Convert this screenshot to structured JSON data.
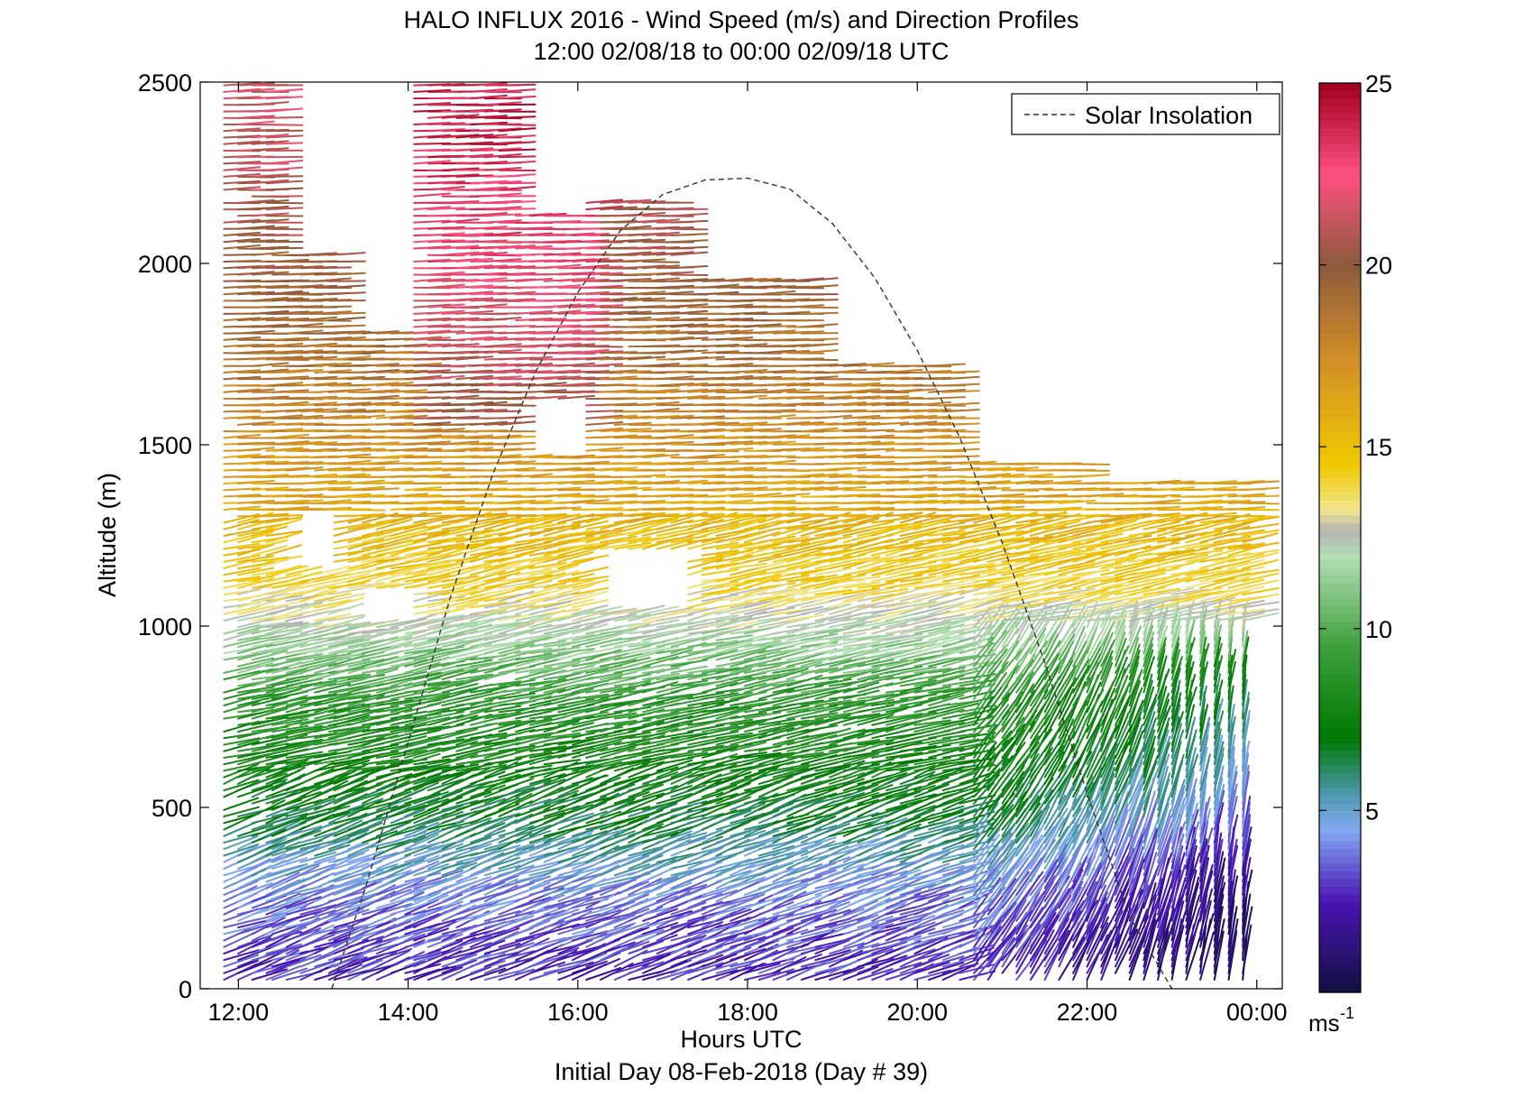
{
  "chart_data": {
    "type": "wind-barb-profile",
    "title": "HALO INFLUX 2016 - Wind Speed (m/s) and Direction Profiles",
    "subtitle": "12:00 02/08/18 to 00:00 02/09/18  UTC",
    "xlabel": "Hours UTC",
    "xlabel2": "Initial Day 08-Feb-2018 (Day # 39)",
    "ylabel": "Altitude (m)",
    "xlim": [
      11.55,
      24.3
    ],
    "ylim": [
      0,
      2500
    ],
    "x_ticks": [
      {
        "value": 12,
        "label": "12:00"
      },
      {
        "value": 14,
        "label": "14:00"
      },
      {
        "value": 16,
        "label": "16:00"
      },
      {
        "value": 18,
        "label": "18:00"
      },
      {
        "value": 20,
        "label": "20:00"
      },
      {
        "value": 22,
        "label": "22:00"
      },
      {
        "value": 24,
        "label": "00:00"
      }
    ],
    "y_ticks": [
      {
        "value": 0,
        "label": "0"
      },
      {
        "value": 500,
        "label": "500"
      },
      {
        "value": 1000,
        "label": "1000"
      },
      {
        "value": 1500,
        "label": "1500"
      },
      {
        "value": 2000,
        "label": "2000"
      },
      {
        "value": 2500,
        "label": "2500"
      }
    ],
    "legend": {
      "entry": "Solar Insolation",
      "position": "top-right",
      "line_style": "dashed"
    },
    "solar_insolation_curve": {
      "x": [
        13.1,
        13.5,
        14.0,
        14.5,
        15.0,
        15.5,
        16.0,
        16.5,
        17.0,
        17.5,
        18.0,
        18.5,
        19.0,
        19.5,
        20.0,
        20.5,
        21.0,
        21.5,
        22.0,
        22.5,
        23.0
      ],
      "y": [
        0,
        280,
        680,
        1080,
        1420,
        1700,
        1920,
        2090,
        2190,
        2230,
        2235,
        2205,
        2110,
        1960,
        1760,
        1520,
        1230,
        900,
        540,
        200,
        0
      ]
    },
    "colorbar": {
      "range": [
        0,
        25
      ],
      "ticks": [
        {
          "value": 5,
          "label": "5"
        },
        {
          "value": 10,
          "label": "10"
        },
        {
          "value": 15,
          "label": "15"
        },
        {
          "value": 20,
          "label": "20"
        },
        {
          "value": 25,
          "label": "25"
        }
      ],
      "unit_label": "ms",
      "unit_exponent": "-1",
      "stops": [
        {
          "value": 0,
          "color": "#101040"
        },
        {
          "value": 2.5,
          "color": "#4a14b4"
        },
        {
          "value": 4.5,
          "color": "#82aaf2"
        },
        {
          "value": 5.5,
          "color": "#4a96a8"
        },
        {
          "value": 7,
          "color": "#007800"
        },
        {
          "value": 9.5,
          "color": "#3ca03c"
        },
        {
          "value": 12,
          "color": "#b4deb4"
        },
        {
          "value": 12.7,
          "color": "#b4b4b4"
        },
        {
          "value": 13.3,
          "color": "#f2e68c"
        },
        {
          "value": 14.5,
          "color": "#f0c800"
        },
        {
          "value": 17.5,
          "color": "#d28c28"
        },
        {
          "value": 20,
          "color": "#8c5a3c"
        },
        {
          "value": 22.5,
          "color": "#ff5082"
        },
        {
          "value": 25,
          "color": "#a0001e"
        }
      ]
    },
    "profiles": {
      "time_step_hours": 0.167,
      "altitude_step_m": 18,
      "columns": [
        {
          "t_start": 11.83,
          "t_end": 12.4,
          "top_m": 2500,
          "gaps": []
        },
        {
          "t_start": 12.4,
          "t_end": 13.13,
          "top_m": 2040,
          "gaps": [
            [
              1150,
              1320
            ]
          ]
        },
        {
          "t_start": 13.13,
          "t_end": 14.07,
          "top_m": 1820,
          "gaps": [
            [
              1000,
              1090
            ]
          ]
        },
        {
          "t_start": 14.07,
          "t_end": 15.27,
          "top_m": 2500,
          "gaps": []
        },
        {
          "t_start": 15.27,
          "t_end": 16.1,
          "top_m": 2140,
          "gaps": [
            [
              1480,
              1620
            ]
          ]
        },
        {
          "t_start": 16.1,
          "t_end": 17.3,
          "top_m": 2170,
          "gaps": [
            [
              1050,
              1200
            ]
          ]
        },
        {
          "t_start": 17.3,
          "t_end": 18.8,
          "top_m": 1960,
          "gaps": []
        },
        {
          "t_start": 18.8,
          "t_end": 20.5,
          "top_m": 1720,
          "gaps": []
        },
        {
          "t_start": 20.5,
          "t_end": 22.0,
          "top_m": 1460,
          "gaps": []
        },
        {
          "t_start": 22.0,
          "t_end": 23.0,
          "top_m": 1410,
          "gaps": []
        },
        {
          "t_start": 23.0,
          "t_end": 23.9,
          "top_m": 1410,
          "gaps": []
        }
      ],
      "speed_profile_vs_altitude": [
        {
          "alt": 0,
          "speed": 2.5
        },
        {
          "alt": 250,
          "speed": 4.0
        },
        {
          "alt": 500,
          "speed": 7.0
        },
        {
          "alt": 800,
          "speed": 9.0
        },
        {
          "alt": 1100,
          "speed": 14.0
        },
        {
          "alt": 1400,
          "speed": 16.5
        },
        {
          "alt": 1700,
          "speed": 18.5
        },
        {
          "alt": 2000,
          "speed": 20.0
        },
        {
          "alt": 2400,
          "speed": 21.5
        }
      ]
    }
  }
}
